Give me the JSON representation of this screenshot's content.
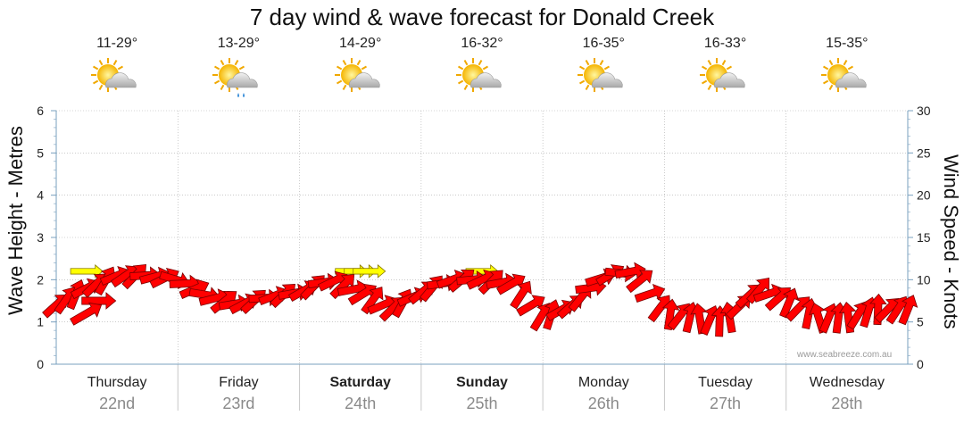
{
  "chart_data": {
    "type": "line",
    "title": "7 day wind & wave forecast for Donald Creek",
    "ylabel_left": "Wave Height - Metres",
    "ylabel_right": "Wind Speed - Knots",
    "ylim_left": [
      0,
      6
    ],
    "ylim_right": [
      0,
      30
    ],
    "yticks_left": [
      "0",
      "1",
      "2",
      "3",
      "4",
      "5",
      "6"
    ],
    "yticks_right": [
      "0",
      "5",
      "10",
      "15",
      "20",
      "25",
      "30"
    ],
    "days": [
      {
        "day": "Thursday",
        "date": "22nd",
        "temp": "11-29°",
        "icon": "partly-cloudy-icon",
        "bold": false
      },
      {
        "day": "Friday",
        "date": "23rd",
        "temp": "13-29°",
        "icon": "sun-cloud-rain-icon",
        "bold": false
      },
      {
        "day": "Saturday",
        "date": "24th",
        "temp": "14-29°",
        "icon": "partly-cloudy-icon",
        "bold": true
      },
      {
        "day": "Sunday",
        "date": "25th",
        "temp": "16-32°",
        "icon": "partly-cloudy-icon",
        "bold": true
      },
      {
        "day": "Monday",
        "date": "26th",
        "temp": "16-35°",
        "icon": "partly-cloudy-icon",
        "bold": false
      },
      {
        "day": "Tuesday",
        "date": "27th",
        "temp": "16-33°",
        "icon": "partly-cloudy-icon",
        "bold": false
      },
      {
        "day": "Wednesday",
        "date": "28th",
        "temp": "15-35°",
        "icon": "partly-cloudy-icon",
        "bold": false
      }
    ],
    "series": [
      {
        "name": "Wind Speed (knots)",
        "axis": "right",
        "color": "#ff0000",
        "x_days": [
          0.0,
          0.25,
          0.5,
          0.75,
          1.0,
          1.25,
          1.5,
          1.75,
          2.0,
          2.25,
          2.5,
          2.75,
          3.0,
          3.25,
          3.5,
          3.75,
          4.0,
          4.25,
          4.5,
          4.75,
          5.0,
          5.25,
          5.5,
          5.75,
          6.0,
          6.25,
          6.5,
          6.75,
          7.0
        ],
        "values": [
          7,
          9,
          10.5,
          10.5,
          10,
          8,
          7,
          8,
          8.5,
          10,
          8.5,
          6.5,
          8.5,
          10,
          10,
          9.5,
          5.5,
          7,
          10.5,
          11,
          6,
          5.5,
          5,
          9,
          7.5,
          5.5,
          5.5,
          6.5,
          6.5
        ],
        "directions_deg": [
          60,
          45,
          40,
          20,
          0,
          10,
          30,
          20,
          30,
          25,
          30,
          45,
          40,
          20,
          25,
          30,
          60,
          40,
          15,
          10,
          60,
          80,
          90,
          30,
          45,
          90,
          80,
          70,
          50
        ]
      },
      {
        "name": "Wave Height (m)",
        "axis": "left",
        "color": "#ffff00",
        "x_days": [
          0.25,
          2.5,
          3.5
        ],
        "values": [
          2.2,
          2.2,
          2.2
        ]
      }
    ],
    "extra_arrows": [
      {
        "x_day": 0.35,
        "knots": 7.5,
        "direction_deg": 0
      },
      {
        "x_day": 0.25,
        "knots": 6,
        "direction_deg": 30
      }
    ],
    "grid": true
  },
  "credit": "www.seabreeze.com.au",
  "colors": {
    "wind": "#ff0000",
    "wave": "#ffff00",
    "grid": "#aaaaaa",
    "axis": "#7aa0bf"
  }
}
